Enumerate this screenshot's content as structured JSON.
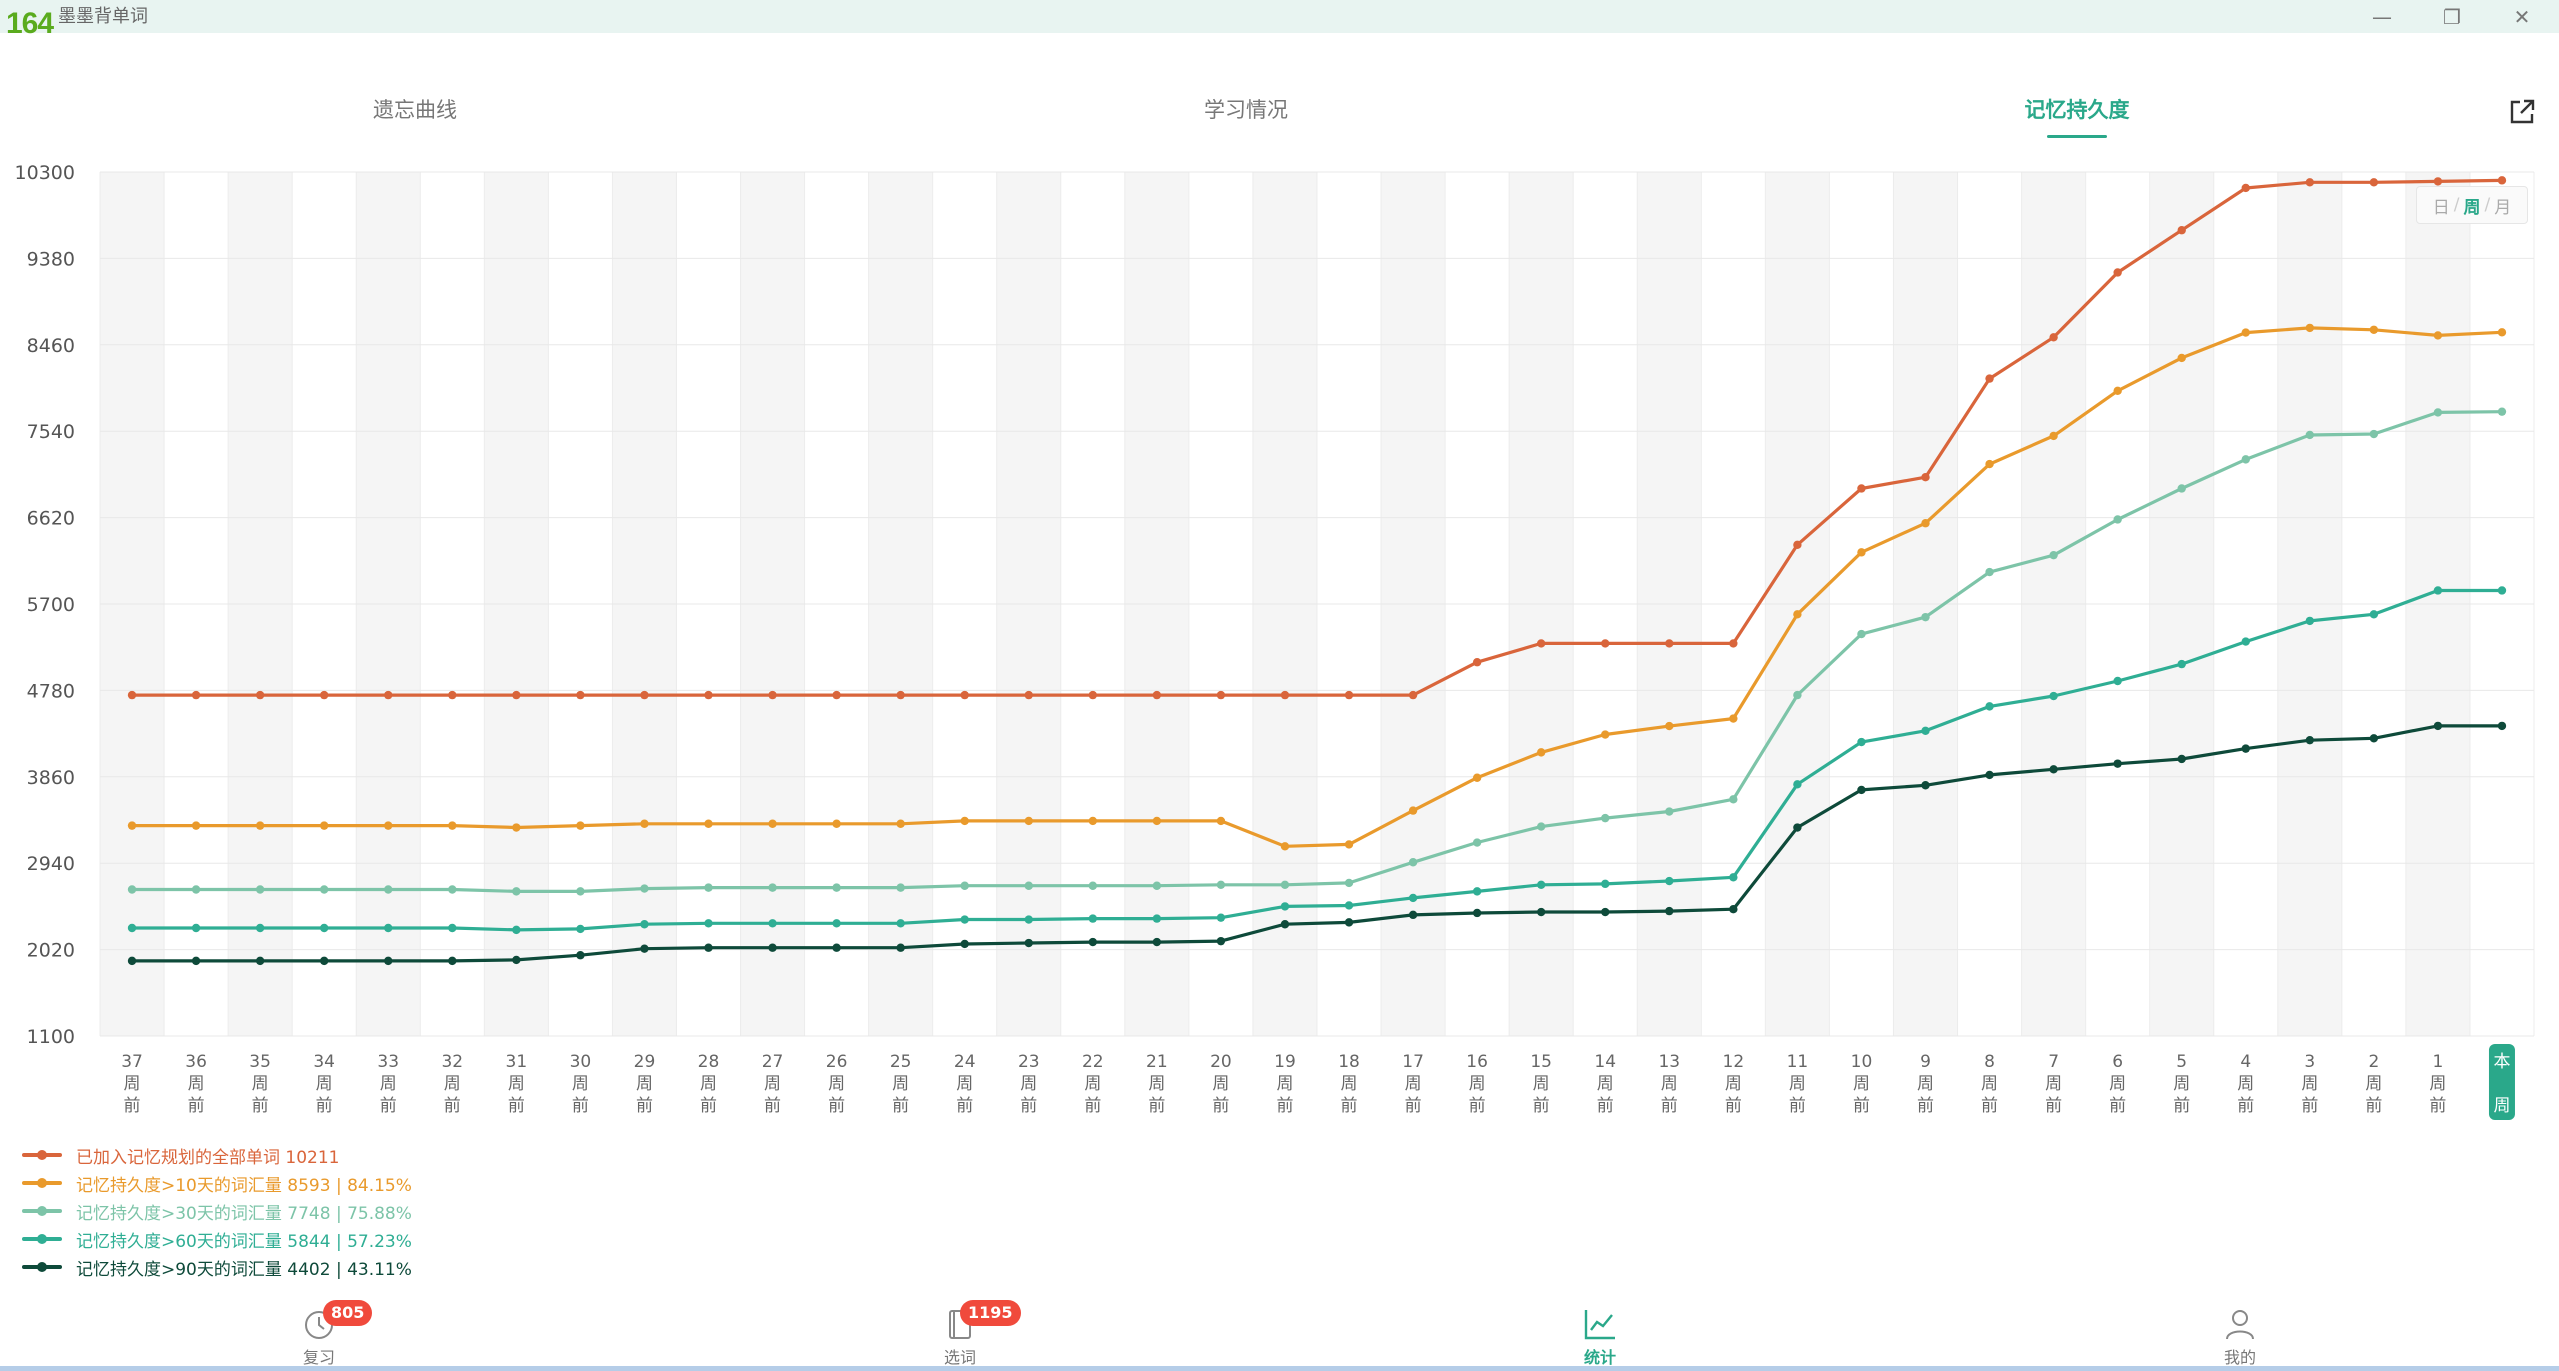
{
  "window": {
    "badge": "164",
    "title": "墨墨背单词",
    "minimize_glyph": "—",
    "restore_glyph": "❐",
    "close_glyph": "✕"
  },
  "tabs": [
    {
      "label": "遗忘曲线",
      "active": false
    },
    {
      "label": "学习情况",
      "active": false
    },
    {
      "label": "记忆持久度",
      "active": true
    }
  ],
  "period_switch": {
    "day": "日",
    "week": "周",
    "month": "月",
    "separator": "/",
    "active": "周"
  },
  "chart_data": {
    "type": "line",
    "ylim": [
      1100,
      10300
    ],
    "yticks": [
      1100,
      2020,
      2940,
      3860,
      4780,
      5700,
      6620,
      7540,
      8460,
      9380,
      10300
    ],
    "categories": [
      "37",
      "36",
      "35",
      "34",
      "33",
      "32",
      "31",
      "30",
      "29",
      "28",
      "27",
      "26",
      "25",
      "24",
      "23",
      "22",
      "21",
      "20",
      "19",
      "18",
      "17",
      "16",
      "15",
      "14",
      "13",
      "12",
      "11",
      "10",
      "9",
      "8",
      "7",
      "6",
      "5",
      "4",
      "3",
      "2",
      "1",
      "本"
    ],
    "category_suffix": [
      "周",
      "前"
    ],
    "current_label": [
      "本",
      "周"
    ],
    "grid": true,
    "series": [
      {
        "name": "已加入记忆规划的全部单词 10211",
        "color": "#d9653b",
        "values": [
          4730,
          4730,
          4730,
          4730,
          4730,
          4730,
          4730,
          4730,
          4730,
          4730,
          4730,
          4730,
          4730,
          4730,
          4730,
          4730,
          4730,
          4730,
          4730,
          4730,
          4730,
          5080,
          5280,
          5280,
          5280,
          5280,
          6330,
          6930,
          7050,
          8100,
          8540,
          9230,
          9680,
          10130,
          10190,
          10190,
          10200,
          10211
        ]
      },
      {
        "name": "记忆持久度>10天的词汇量 8593 | 84.15%",
        "color": "#e99a2c",
        "values": [
          3340,
          3340,
          3340,
          3340,
          3340,
          3340,
          3320,
          3340,
          3360,
          3360,
          3360,
          3360,
          3360,
          3390,
          3390,
          3390,
          3390,
          3390,
          3120,
          3140,
          3500,
          3850,
          4120,
          4310,
          4400,
          4480,
          5590,
          6250,
          6560,
          7190,
          7490,
          7970,
          8320,
          8590,
          8640,
          8620,
          8560,
          8593
        ]
      },
      {
        "name": "记忆持久度>30天的词汇量 7748 | 75.88%",
        "color": "#7dc4a8",
        "values": [
          2660,
          2660,
          2660,
          2660,
          2660,
          2660,
          2640,
          2640,
          2670,
          2680,
          2680,
          2680,
          2680,
          2700,
          2700,
          2700,
          2700,
          2710,
          2710,
          2730,
          2950,
          3160,
          3330,
          3420,
          3490,
          3620,
          4730,
          5380,
          5560,
          6040,
          6220,
          6600,
          6930,
          7240,
          7500,
          7510,
          7740,
          7748
        ]
      },
      {
        "name": "记忆持久度>60天的词汇量 5844 | 57.23%",
        "color": "#2fae94",
        "values": [
          2250,
          2250,
          2250,
          2250,
          2250,
          2250,
          2230,
          2240,
          2290,
          2300,
          2300,
          2300,
          2300,
          2340,
          2340,
          2350,
          2350,
          2360,
          2480,
          2490,
          2570,
          2640,
          2710,
          2720,
          2750,
          2790,
          3780,
          4230,
          4350,
          4610,
          4720,
          4880,
          5060,
          5300,
          5520,
          5590,
          5844,
          5844
        ]
      },
      {
        "name": "记忆持久度>90天的词汇量 4402 | 43.11%",
        "color": "#0e4a3a",
        "values": [
          1900,
          1900,
          1900,
          1900,
          1900,
          1900,
          1910,
          1960,
          2030,
          2040,
          2040,
          2040,
          2040,
          2080,
          2090,
          2100,
          2100,
          2110,
          2290,
          2310,
          2390,
          2410,
          2420,
          2420,
          2430,
          2450,
          3320,
          3720,
          3770,
          3880,
          3940,
          4000,
          4050,
          4160,
          4250,
          4270,
          4402,
          4402
        ]
      }
    ]
  },
  "bottom_nav": [
    {
      "label": "复习",
      "badge": "805",
      "icon": "review-clock-icon",
      "active": false
    },
    {
      "label": "选词",
      "badge": "1195",
      "icon": "book-icon",
      "active": false
    },
    {
      "label": "统计",
      "badge": "",
      "icon": "stats-chart-icon",
      "active": true
    },
    {
      "label": "我的",
      "badge": "",
      "icon": "person-icon",
      "active": false
    }
  ],
  "colors": {
    "accent": "#2aa88a",
    "badge": "#f04a3c"
  }
}
